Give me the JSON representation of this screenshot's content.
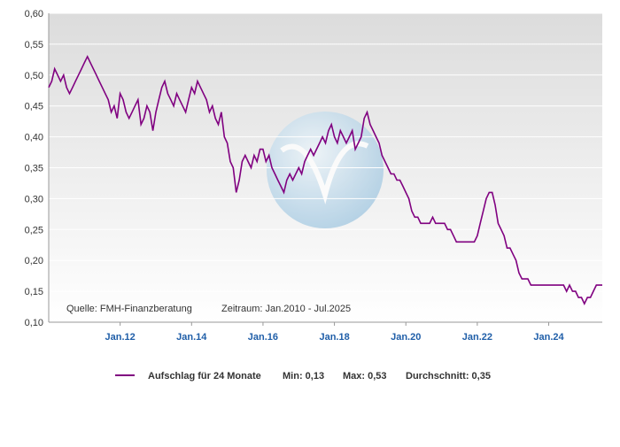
{
  "chart_data": {
    "type": "line",
    "x": [
      "2010-01",
      "2010-02",
      "2010-03",
      "2010-04",
      "2010-05",
      "2010-06",
      "2010-07",
      "2010-08",
      "2010-09",
      "2010-10",
      "2010-11",
      "2010-12",
      "2011-01",
      "2011-02",
      "2011-03",
      "2011-04",
      "2011-05",
      "2011-06",
      "2011-07",
      "2011-08",
      "2011-09",
      "2011-10",
      "2011-11",
      "2011-12",
      "2012-01",
      "2012-02",
      "2012-03",
      "2012-04",
      "2012-05",
      "2012-06",
      "2012-07",
      "2012-08",
      "2012-09",
      "2012-10",
      "2012-11",
      "2012-12",
      "2013-01",
      "2013-02",
      "2013-03",
      "2013-04",
      "2013-05",
      "2013-06",
      "2013-07",
      "2013-08",
      "2013-09",
      "2013-10",
      "2013-11",
      "2013-12",
      "2014-01",
      "2014-02",
      "2014-03",
      "2014-04",
      "2014-05",
      "2014-06",
      "2014-07",
      "2014-08",
      "2014-09",
      "2014-10",
      "2014-11",
      "2014-12",
      "2015-01",
      "2015-02",
      "2015-03",
      "2015-04",
      "2015-05",
      "2015-06",
      "2015-07",
      "2015-08",
      "2015-09",
      "2015-10",
      "2015-11",
      "2015-12",
      "2016-01",
      "2016-02",
      "2016-03",
      "2016-04",
      "2016-05",
      "2016-06",
      "2016-07",
      "2016-08",
      "2016-09",
      "2016-10",
      "2016-11",
      "2016-12",
      "2017-01",
      "2017-02",
      "2017-03",
      "2017-04",
      "2017-05",
      "2017-06",
      "2017-07",
      "2017-08",
      "2017-09",
      "2017-10",
      "2017-11",
      "2017-12",
      "2018-01",
      "2018-02",
      "2018-03",
      "2018-04",
      "2018-05",
      "2018-06",
      "2018-07",
      "2018-08",
      "2018-09",
      "2018-10",
      "2018-11",
      "2018-12",
      "2019-01",
      "2019-02",
      "2019-03",
      "2019-04",
      "2019-05",
      "2019-06",
      "2019-07",
      "2019-08",
      "2019-09",
      "2019-10",
      "2019-11",
      "2019-12",
      "2020-01",
      "2020-02",
      "2020-03",
      "2020-04",
      "2020-05",
      "2020-06",
      "2020-07",
      "2020-08",
      "2020-09",
      "2020-10",
      "2020-11",
      "2020-12",
      "2021-01",
      "2021-02",
      "2021-03",
      "2021-04",
      "2021-05",
      "2021-06",
      "2021-07",
      "2021-08",
      "2021-09",
      "2021-10",
      "2021-11",
      "2021-12",
      "2022-01",
      "2022-02",
      "2022-03",
      "2022-04",
      "2022-05",
      "2022-06",
      "2022-07",
      "2022-08",
      "2022-09",
      "2022-10",
      "2022-11",
      "2022-12",
      "2023-01",
      "2023-02",
      "2023-03",
      "2023-04",
      "2023-05",
      "2023-06",
      "2023-07",
      "2023-08",
      "2023-09",
      "2023-10",
      "2023-11",
      "2023-12",
      "2024-01",
      "2024-02",
      "2024-03",
      "2024-04",
      "2024-05",
      "2024-06",
      "2024-07",
      "2024-08",
      "2024-09",
      "2024-10",
      "2024-11",
      "2024-12",
      "2025-01",
      "2025-02",
      "2025-03",
      "2025-04",
      "2025-05",
      "2025-06",
      "2025-07"
    ],
    "series": [
      {
        "name": "Aufschlag für 24 Monate",
        "color": "#800080",
        "values": [
          0.48,
          0.49,
          0.51,
          0.5,
          0.49,
          0.5,
          0.48,
          0.47,
          0.48,
          0.49,
          0.5,
          0.51,
          0.52,
          0.53,
          0.52,
          0.51,
          0.5,
          0.49,
          0.48,
          0.47,
          0.46,
          0.44,
          0.45,
          0.43,
          0.47,
          0.46,
          0.44,
          0.43,
          0.44,
          0.45,
          0.46,
          0.42,
          0.43,
          0.45,
          0.44,
          0.41,
          0.44,
          0.46,
          0.48,
          0.49,
          0.47,
          0.46,
          0.45,
          0.47,
          0.46,
          0.45,
          0.44,
          0.46,
          0.48,
          0.47,
          0.49,
          0.48,
          0.47,
          0.46,
          0.44,
          0.45,
          0.43,
          0.42,
          0.44,
          0.4,
          0.39,
          0.36,
          0.35,
          0.31,
          0.33,
          0.36,
          0.37,
          0.36,
          0.35,
          0.37,
          0.36,
          0.38,
          0.38,
          0.36,
          0.37,
          0.35,
          0.34,
          0.33,
          0.32,
          0.31,
          0.33,
          0.34,
          0.33,
          0.34,
          0.35,
          0.34,
          0.36,
          0.37,
          0.38,
          0.37,
          0.38,
          0.39,
          0.4,
          0.39,
          0.41,
          0.42,
          0.4,
          0.39,
          0.41,
          0.4,
          0.39,
          0.4,
          0.41,
          0.38,
          0.39,
          0.4,
          0.43,
          0.44,
          0.42,
          0.41,
          0.4,
          0.39,
          0.37,
          0.36,
          0.35,
          0.34,
          0.34,
          0.33,
          0.33,
          0.32,
          0.31,
          0.3,
          0.28,
          0.27,
          0.27,
          0.26,
          0.26,
          0.26,
          0.26,
          0.27,
          0.26,
          0.26,
          0.26,
          0.26,
          0.25,
          0.25,
          0.24,
          0.23,
          0.23,
          0.23,
          0.23,
          0.23,
          0.23,
          0.23,
          0.24,
          0.26,
          0.28,
          0.3,
          0.31,
          0.31,
          0.29,
          0.26,
          0.25,
          0.24,
          0.22,
          0.22,
          0.21,
          0.2,
          0.18,
          0.17,
          0.17,
          0.17,
          0.16,
          0.16,
          0.16,
          0.16,
          0.16,
          0.16,
          0.16,
          0.16,
          0.16,
          0.16,
          0.16,
          0.16,
          0.15,
          0.16,
          0.15,
          0.15,
          0.14,
          0.14,
          0.13,
          0.14,
          0.14,
          0.15,
          0.16,
          0.16,
          0.16
        ]
      }
    ],
    "ylim": [
      0.1,
      0.6
    ],
    "yticks": [
      {
        "value": 0.1,
        "label": "0,10"
      },
      {
        "value": 0.15,
        "label": "0,15"
      },
      {
        "value": 0.2,
        "label": "0,20"
      },
      {
        "value": 0.25,
        "label": "0,25"
      },
      {
        "value": 0.3,
        "label": "0,30"
      },
      {
        "value": 0.35,
        "label": "0,35"
      },
      {
        "value": 0.4,
        "label": "0,40"
      },
      {
        "value": 0.45,
        "label": "0,45"
      },
      {
        "value": 0.5,
        "label": "0,50"
      },
      {
        "value": 0.55,
        "label": "0,55"
      },
      {
        "value": 0.6,
        "label": "0,60"
      }
    ],
    "xticks": [
      {
        "value": "2012-01",
        "label": "Jan.12"
      },
      {
        "value": "2014-01",
        "label": "Jan.14"
      },
      {
        "value": "2016-01",
        "label": "Jan.16"
      },
      {
        "value": "2018-01",
        "label": "Jan.18"
      },
      {
        "value": "2020-01",
        "label": "Jan.20"
      },
      {
        "value": "2022-01",
        "label": "Jan.22"
      },
      {
        "value": "2024-01",
        "label": "Jan.24"
      }
    ],
    "grid": true,
    "annotations": [
      "Quelle: FMH-Finanzberatung",
      "Zeitraum: Jan.2010 - Jul.2025"
    ],
    "legend_stats": [
      "Min: 0,13",
      "Max: 0,53",
      "Durchschnitt: 0,35"
    ]
  }
}
